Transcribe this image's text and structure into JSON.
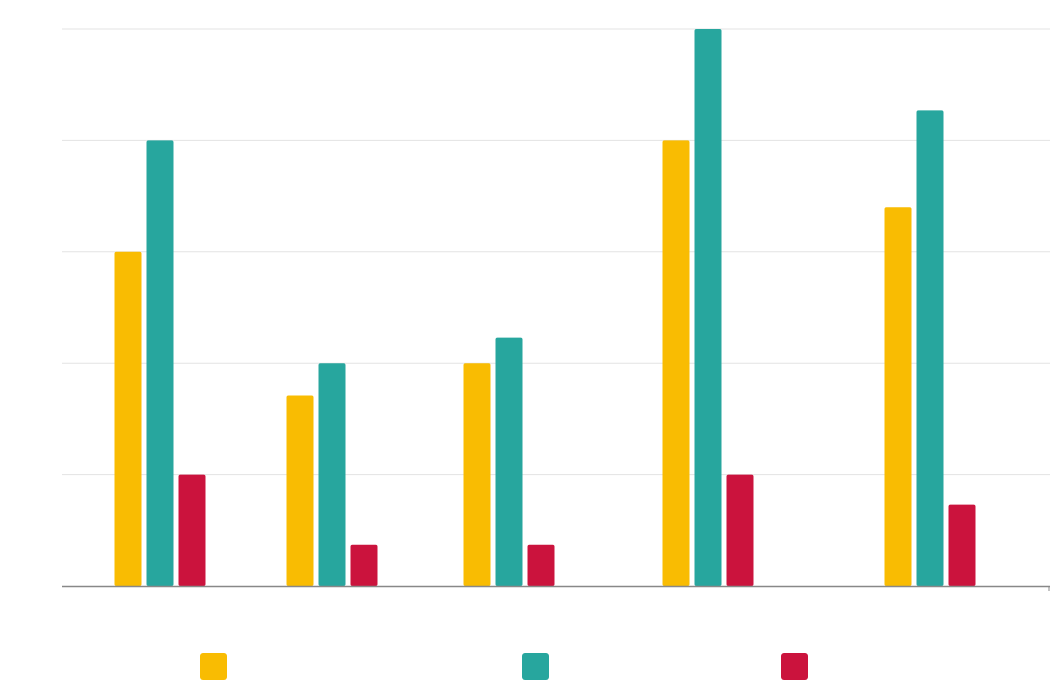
{
  "chart_data": {
    "type": "bar",
    "categories": [
      "",
      "",
      "",
      "",
      ""
    ],
    "series": [
      {
        "color": "#F9BC02",
        "values": [
          3.0,
          1.71,
          2.0,
          4.0,
          3.4
        ]
      },
      {
        "color": "#27A69E",
        "values": [
          4.0,
          2.0,
          2.23,
          5.0,
          4.27
        ]
      },
      {
        "color": "#CB133D",
        "values": [
          1.0,
          0.37,
          0.37,
          1.0,
          0.73
        ]
      }
    ],
    "ylim": [
      0,
      5
    ],
    "grid": true,
    "legend": "bottom",
    "title": "",
    "xlabel": "",
    "ylabel": ""
  }
}
